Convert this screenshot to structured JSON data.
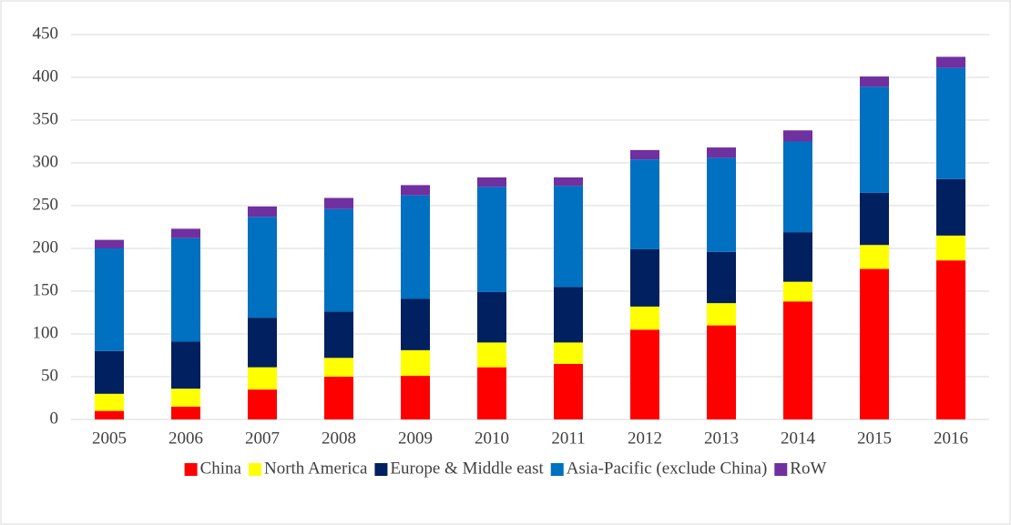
{
  "chart_data": {
    "type": "stacked_bar",
    "categories": [
      "2005",
      "2006",
      "2007",
      "2008",
      "2009",
      "2010",
      "2011",
      "2012",
      "2013",
      "2014",
      "2015",
      "2016"
    ],
    "series": [
      {
        "name": "China",
        "color": "#ff0000",
        "values": [
          10,
          15,
          35,
          50,
          51,
          61,
          65,
          105,
          110,
          138,
          176,
          186
        ]
      },
      {
        "name": "North America",
        "color": "#ffff00",
        "values": [
          20,
          21,
          26,
          22,
          30,
          29,
          25,
          27,
          26,
          23,
          28,
          29
        ]
      },
      {
        "name": "Europe & Middle east",
        "color": "#002060",
        "values": [
          50,
          55,
          58,
          54,
          60,
          59,
          65,
          67,
          60,
          58,
          61,
          66
        ]
      },
      {
        "name": "Asia-Pacific (exclude China)",
        "color": "#0070c0",
        "values": [
          120,
          121,
          118,
          120,
          121,
          123,
          118,
          105,
          110,
          106,
          124,
          130
        ]
      },
      {
        "name": "RoW",
        "color": "#7030a0",
        "values": [
          10,
          11,
          12,
          13,
          12,
          11,
          10,
          11,
          12,
          13,
          12,
          13
        ]
      }
    ],
    "ylim": [
      0,
      450
    ],
    "yticks": [
      0,
      50,
      100,
      150,
      200,
      250,
      300,
      350,
      400,
      450
    ],
    "grid": true,
    "legend": "bottom"
  }
}
